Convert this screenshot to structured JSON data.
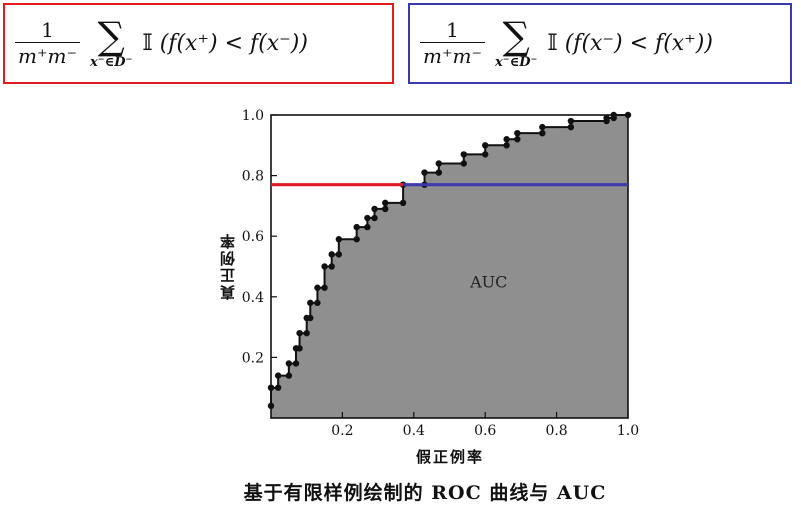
{
  "formulas": {
    "left": {
      "frac_num": "1",
      "frac_den": "m⁺m⁻",
      "sum_sub": "x⁻∈D⁻",
      "expr_prefix": "𝕀",
      "expr_body": "(f(x⁺) < f(x⁻))",
      "border_color": "#e11b22"
    },
    "right": {
      "frac_num": "1",
      "frac_den": "m⁺m⁻",
      "sum_sub": "x⁻∈D⁻",
      "expr_prefix": "𝕀",
      "expr_body": "(f(x⁻) < f(x⁺))",
      "border_color": "#3a3aa8"
    }
  },
  "chart_data": {
    "type": "line",
    "xlabel": "假正例率",
    "ylabel": "真正例率",
    "xlim": [
      0,
      1.0
    ],
    "ylim": [
      0,
      1.0
    ],
    "x_ticks": [
      "0.2",
      "0.4",
      "0.6",
      "0.8",
      "1.0"
    ],
    "y_ticks": [
      "0.2",
      "0.4",
      "0.6",
      "0.8",
      "1.0"
    ],
    "area_label": "AUC",
    "caption": "基于有限样例绘制的 ROC 曲线与 AUC",
    "grid": false,
    "area_color": "#8f8f8f",
    "series": [
      {
        "points": [
          [
            0.0,
            0.04
          ],
          [
            0.0,
            0.1
          ],
          [
            0.02,
            0.1
          ],
          [
            0.02,
            0.14
          ],
          [
            0.05,
            0.14
          ],
          [
            0.05,
            0.18
          ],
          [
            0.07,
            0.18
          ],
          [
            0.07,
            0.23
          ],
          [
            0.08,
            0.23
          ],
          [
            0.08,
            0.28
          ],
          [
            0.1,
            0.28
          ],
          [
            0.1,
            0.33
          ],
          [
            0.11,
            0.33
          ],
          [
            0.11,
            0.38
          ],
          [
            0.13,
            0.38
          ],
          [
            0.13,
            0.43
          ],
          [
            0.15,
            0.43
          ],
          [
            0.15,
            0.5
          ],
          [
            0.17,
            0.5
          ],
          [
            0.17,
            0.54
          ],
          [
            0.19,
            0.54
          ],
          [
            0.19,
            0.59
          ],
          [
            0.24,
            0.59
          ],
          [
            0.24,
            0.63
          ],
          [
            0.27,
            0.63
          ],
          [
            0.27,
            0.66
          ],
          [
            0.29,
            0.66
          ],
          [
            0.29,
            0.69
          ],
          [
            0.32,
            0.69
          ],
          [
            0.32,
            0.71
          ],
          [
            0.37,
            0.71
          ],
          [
            0.37,
            0.77
          ],
          [
            0.43,
            0.77
          ],
          [
            0.43,
            0.81
          ],
          [
            0.47,
            0.81
          ],
          [
            0.47,
            0.84
          ],
          [
            0.54,
            0.84
          ],
          [
            0.54,
            0.87
          ],
          [
            0.6,
            0.87
          ],
          [
            0.6,
            0.9
          ],
          [
            0.66,
            0.9
          ],
          [
            0.66,
            0.92
          ],
          [
            0.69,
            0.92
          ],
          [
            0.69,
            0.94
          ],
          [
            0.76,
            0.94
          ],
          [
            0.76,
            0.96
          ],
          [
            0.84,
            0.96
          ],
          [
            0.84,
            0.98
          ],
          [
            0.94,
            0.98
          ],
          [
            0.94,
            0.99
          ],
          [
            0.96,
            0.99
          ],
          [
            0.96,
            1.0
          ],
          [
            1.0,
            1.0
          ]
        ],
        "color": "#111111"
      }
    ],
    "highlight_lines": [
      {
        "y": 0.77,
        "x_from": 0.0,
        "x_to": 0.37,
        "color": "#e11b22"
      },
      {
        "y": 0.77,
        "x_from": 0.37,
        "x_to": 1.0,
        "color": "#3a3aa8"
      }
    ]
  }
}
